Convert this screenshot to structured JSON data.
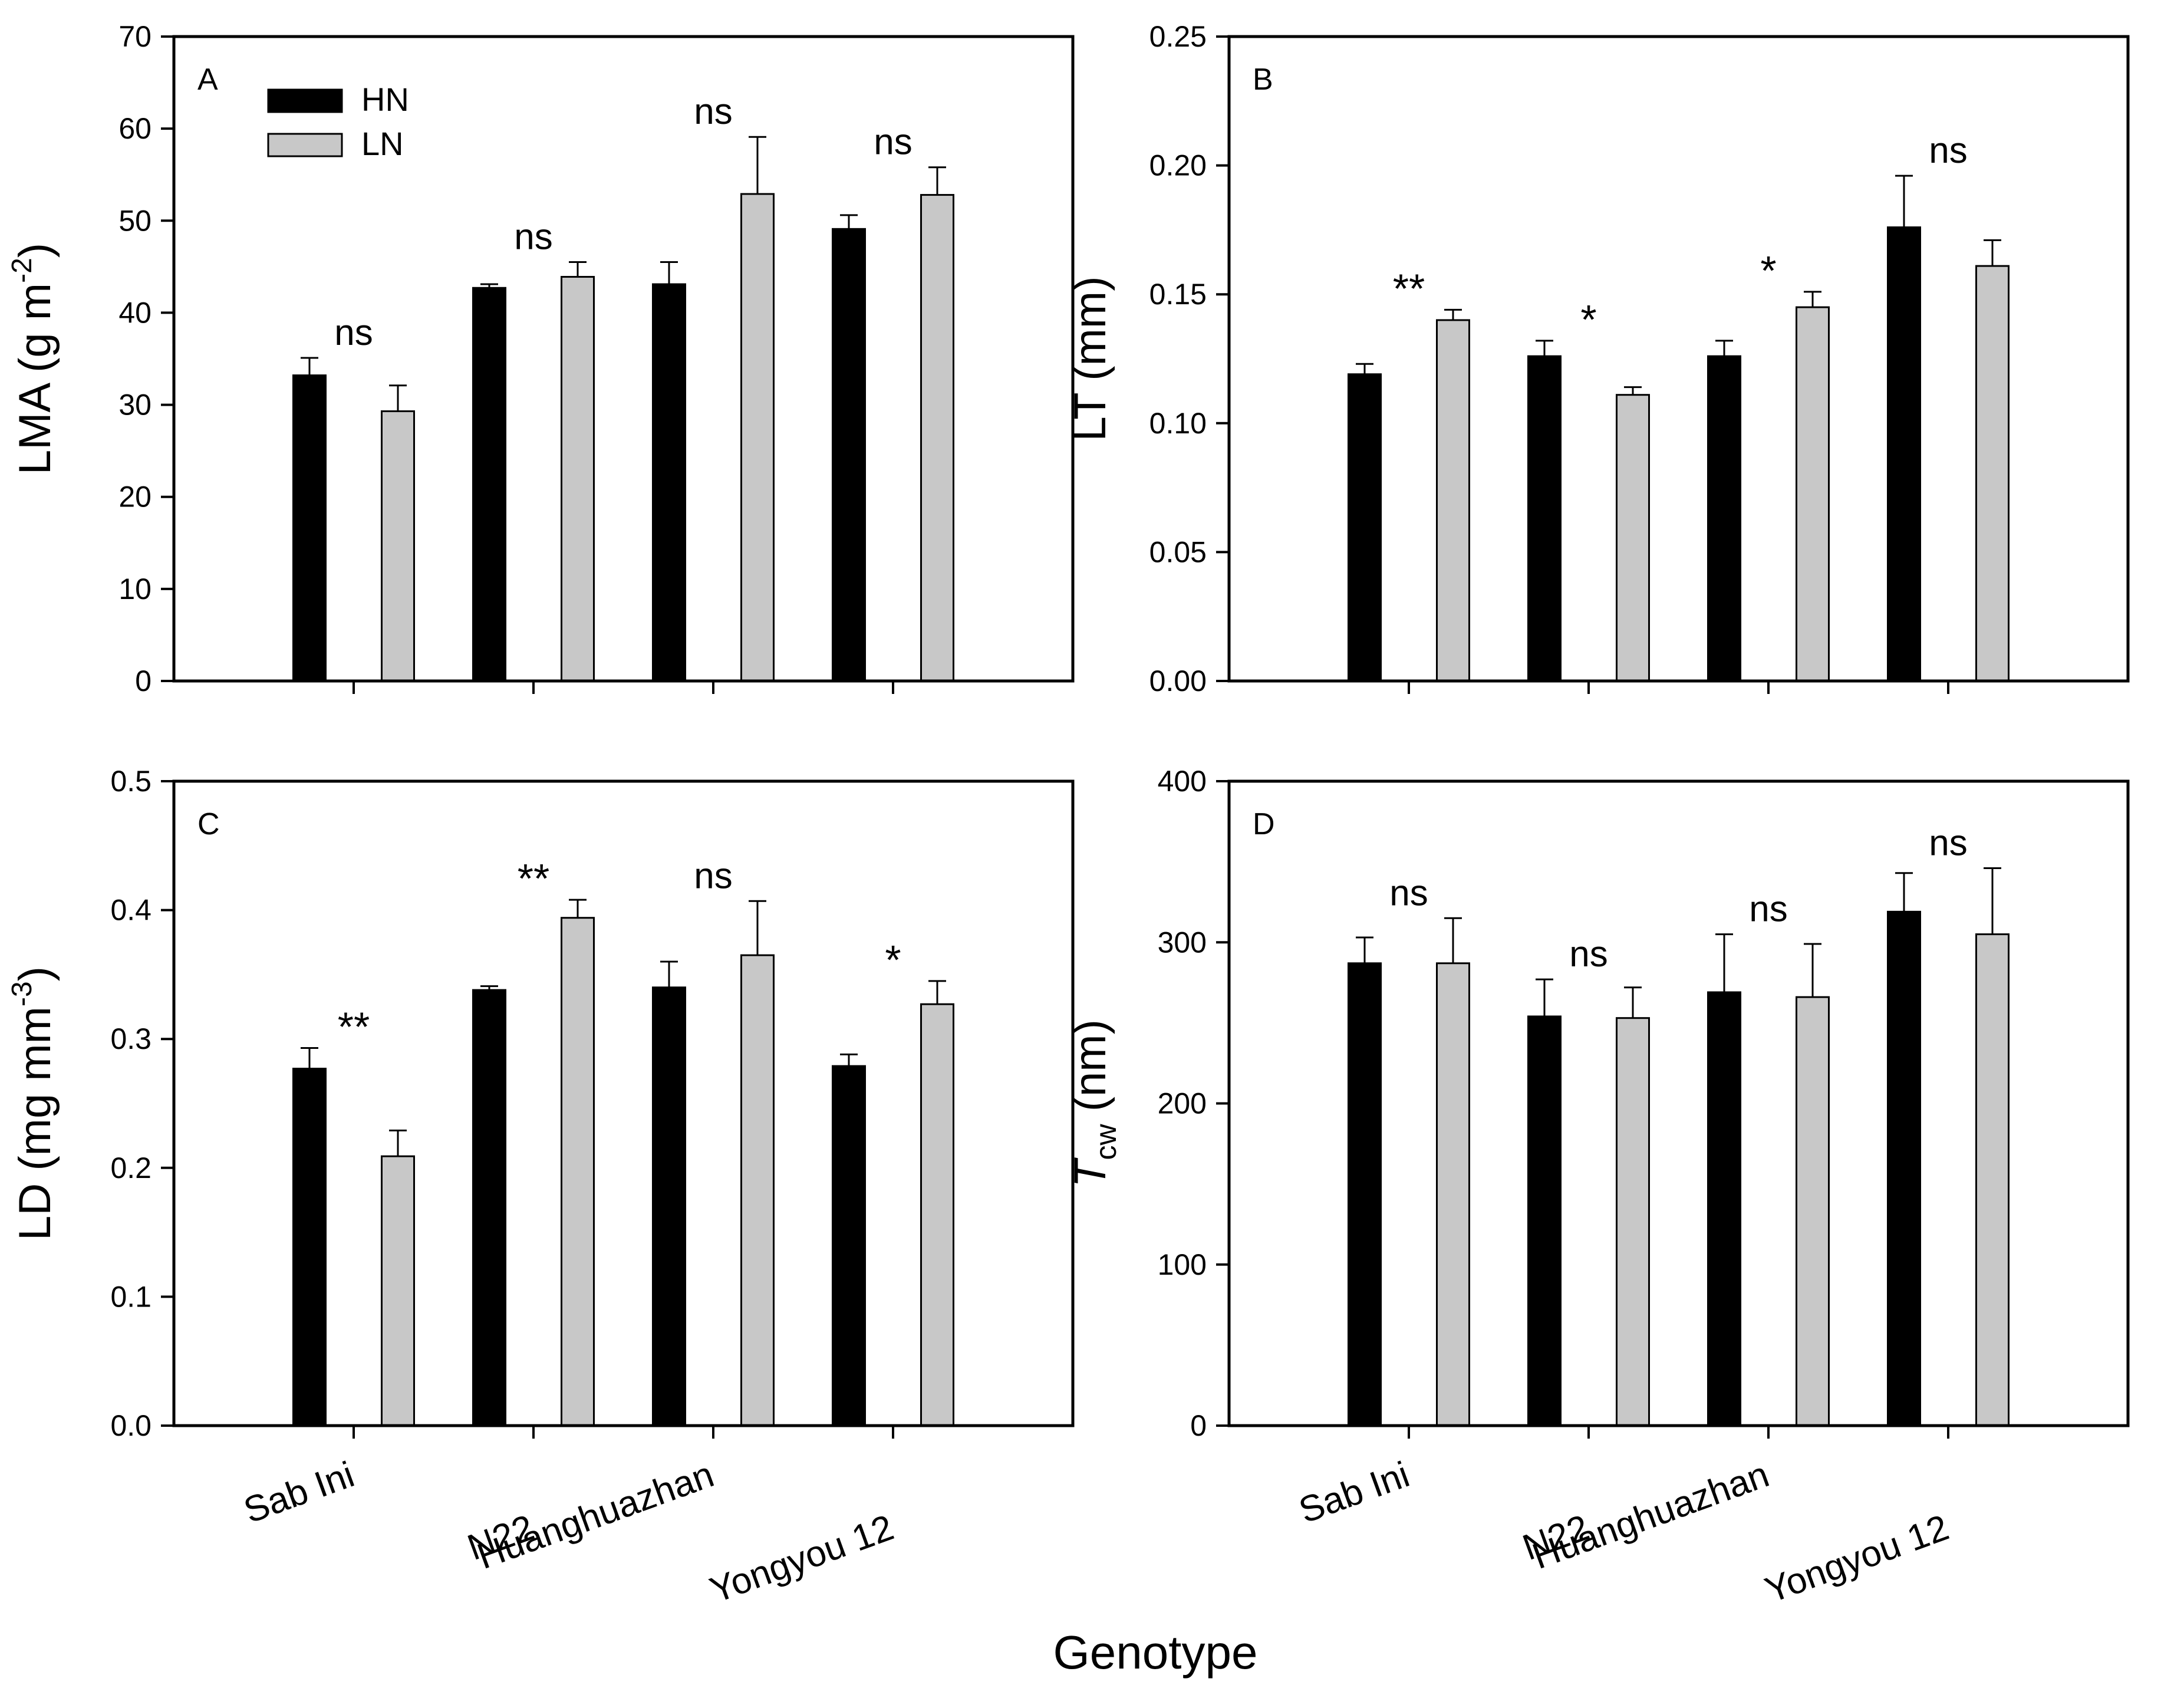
{
  "figure": {
    "xlabel": "Genotype",
    "legend": [
      {
        "label": "HN",
        "color": "#000000"
      },
      {
        "label": "LN",
        "color": "#c8c8c8"
      }
    ]
  },
  "chart_data": [
    {
      "type": "bar",
      "panel": "A",
      "title": "",
      "ylabel": "LMA (g m⁻²)",
      "ylabel_main": "LMA (g m",
      "ylabel_sup": "-2",
      "ylabel_tail": ")",
      "ylim": [
        0,
        70
      ],
      "yticks": [
        "0",
        "10",
        "20",
        "30",
        "40",
        "50",
        "60",
        "70"
      ],
      "categories": [
        "Sab Ini",
        "N22",
        "Huanghuazhan",
        "Yongyou 12"
      ],
      "show_xtick_labels": false,
      "legend_position": "top-left",
      "series": [
        {
          "name": "HN",
          "values": [
            33.2,
            42.7,
            43.1,
            49.1
          ],
          "errors": [
            1.9,
            0.4,
            2.4,
            1.5
          ]
        },
        {
          "name": "LN",
          "values": [
            29.3,
            43.9,
            52.9,
            52.8
          ],
          "errors": [
            2.8,
            1.6,
            6.2,
            3.0
          ]
        }
      ],
      "significance": [
        "ns",
        "ns",
        "ns",
        "ns"
      ]
    },
    {
      "type": "bar",
      "panel": "B",
      "title": "",
      "ylabel": "LT (mm)",
      "ylabel_main": "LT (mm)",
      "ylim": [
        0,
        0.25
      ],
      "yticks": [
        "0.00",
        "0.05",
        "0.10",
        "0.15",
        "0.20",
        "0.25"
      ],
      "categories": [
        "Sab Ini",
        "N22",
        "Huanghuazhan",
        "Yongyou 12"
      ],
      "show_xtick_labels": false,
      "series": [
        {
          "name": "HN",
          "values": [
            0.119,
            0.126,
            0.126,
            0.176
          ],
          "errors": [
            0.004,
            0.006,
            0.006,
            0.02
          ]
        },
        {
          "name": "LN",
          "values": [
            0.14,
            0.111,
            0.145,
            0.161
          ],
          "errors": [
            0.004,
            0.003,
            0.006,
            0.01
          ]
        }
      ],
      "significance": [
        "**",
        "*",
        "*",
        "ns"
      ]
    },
    {
      "type": "bar",
      "panel": "C",
      "title": "",
      "ylabel": "LD (mg mm⁻³)",
      "ylabel_main": "LD (mg mm",
      "ylabel_sup": "-3",
      "ylabel_tail": ")",
      "ylim": [
        0,
        0.5
      ],
      "yticks": [
        "0.0",
        "0.1",
        "0.2",
        "0.3",
        "0.4",
        "0.5"
      ],
      "categories": [
        "Sab Ini",
        "N22",
        "Huanghuazhan",
        "Yongyou 12"
      ],
      "show_xtick_labels": true,
      "series": [
        {
          "name": "HN",
          "values": [
            0.277,
            0.338,
            0.34,
            0.279
          ],
          "errors": [
            0.016,
            0.003,
            0.02,
            0.009
          ]
        },
        {
          "name": "LN",
          "values": [
            0.209,
            0.394,
            0.365,
            0.327
          ],
          "errors": [
            0.02,
            0.014,
            0.042,
            0.018
          ]
        }
      ],
      "significance": [
        "**",
        "**",
        "ns",
        "*"
      ]
    },
    {
      "type": "bar",
      "panel": "D",
      "title": "",
      "ylabel": "Tcw (nm)",
      "ylabel_italic": "T",
      "ylabel_sub": "cw",
      "ylabel_tail": " (nm)",
      "ylim": [
        0,
        400
      ],
      "yticks": [
        "0",
        "100",
        "200",
        "300",
        "400"
      ],
      "categories": [
        "Sab Ini",
        "N22",
        "Huanghuazhan",
        "Yongyou 12"
      ],
      "show_xtick_labels": true,
      "series": [
        {
          "name": "HN",
          "values": [
            287,
            254,
            269,
            319
          ],
          "errors": [
            16,
            23,
            36,
            24
          ]
        },
        {
          "name": "LN",
          "values": [
            287,
            253,
            266,
            305
          ],
          "errors": [
            28,
            19,
            33,
            41
          ]
        }
      ],
      "significance": [
        "ns",
        "ns",
        "ns",
        "ns"
      ]
    }
  ]
}
